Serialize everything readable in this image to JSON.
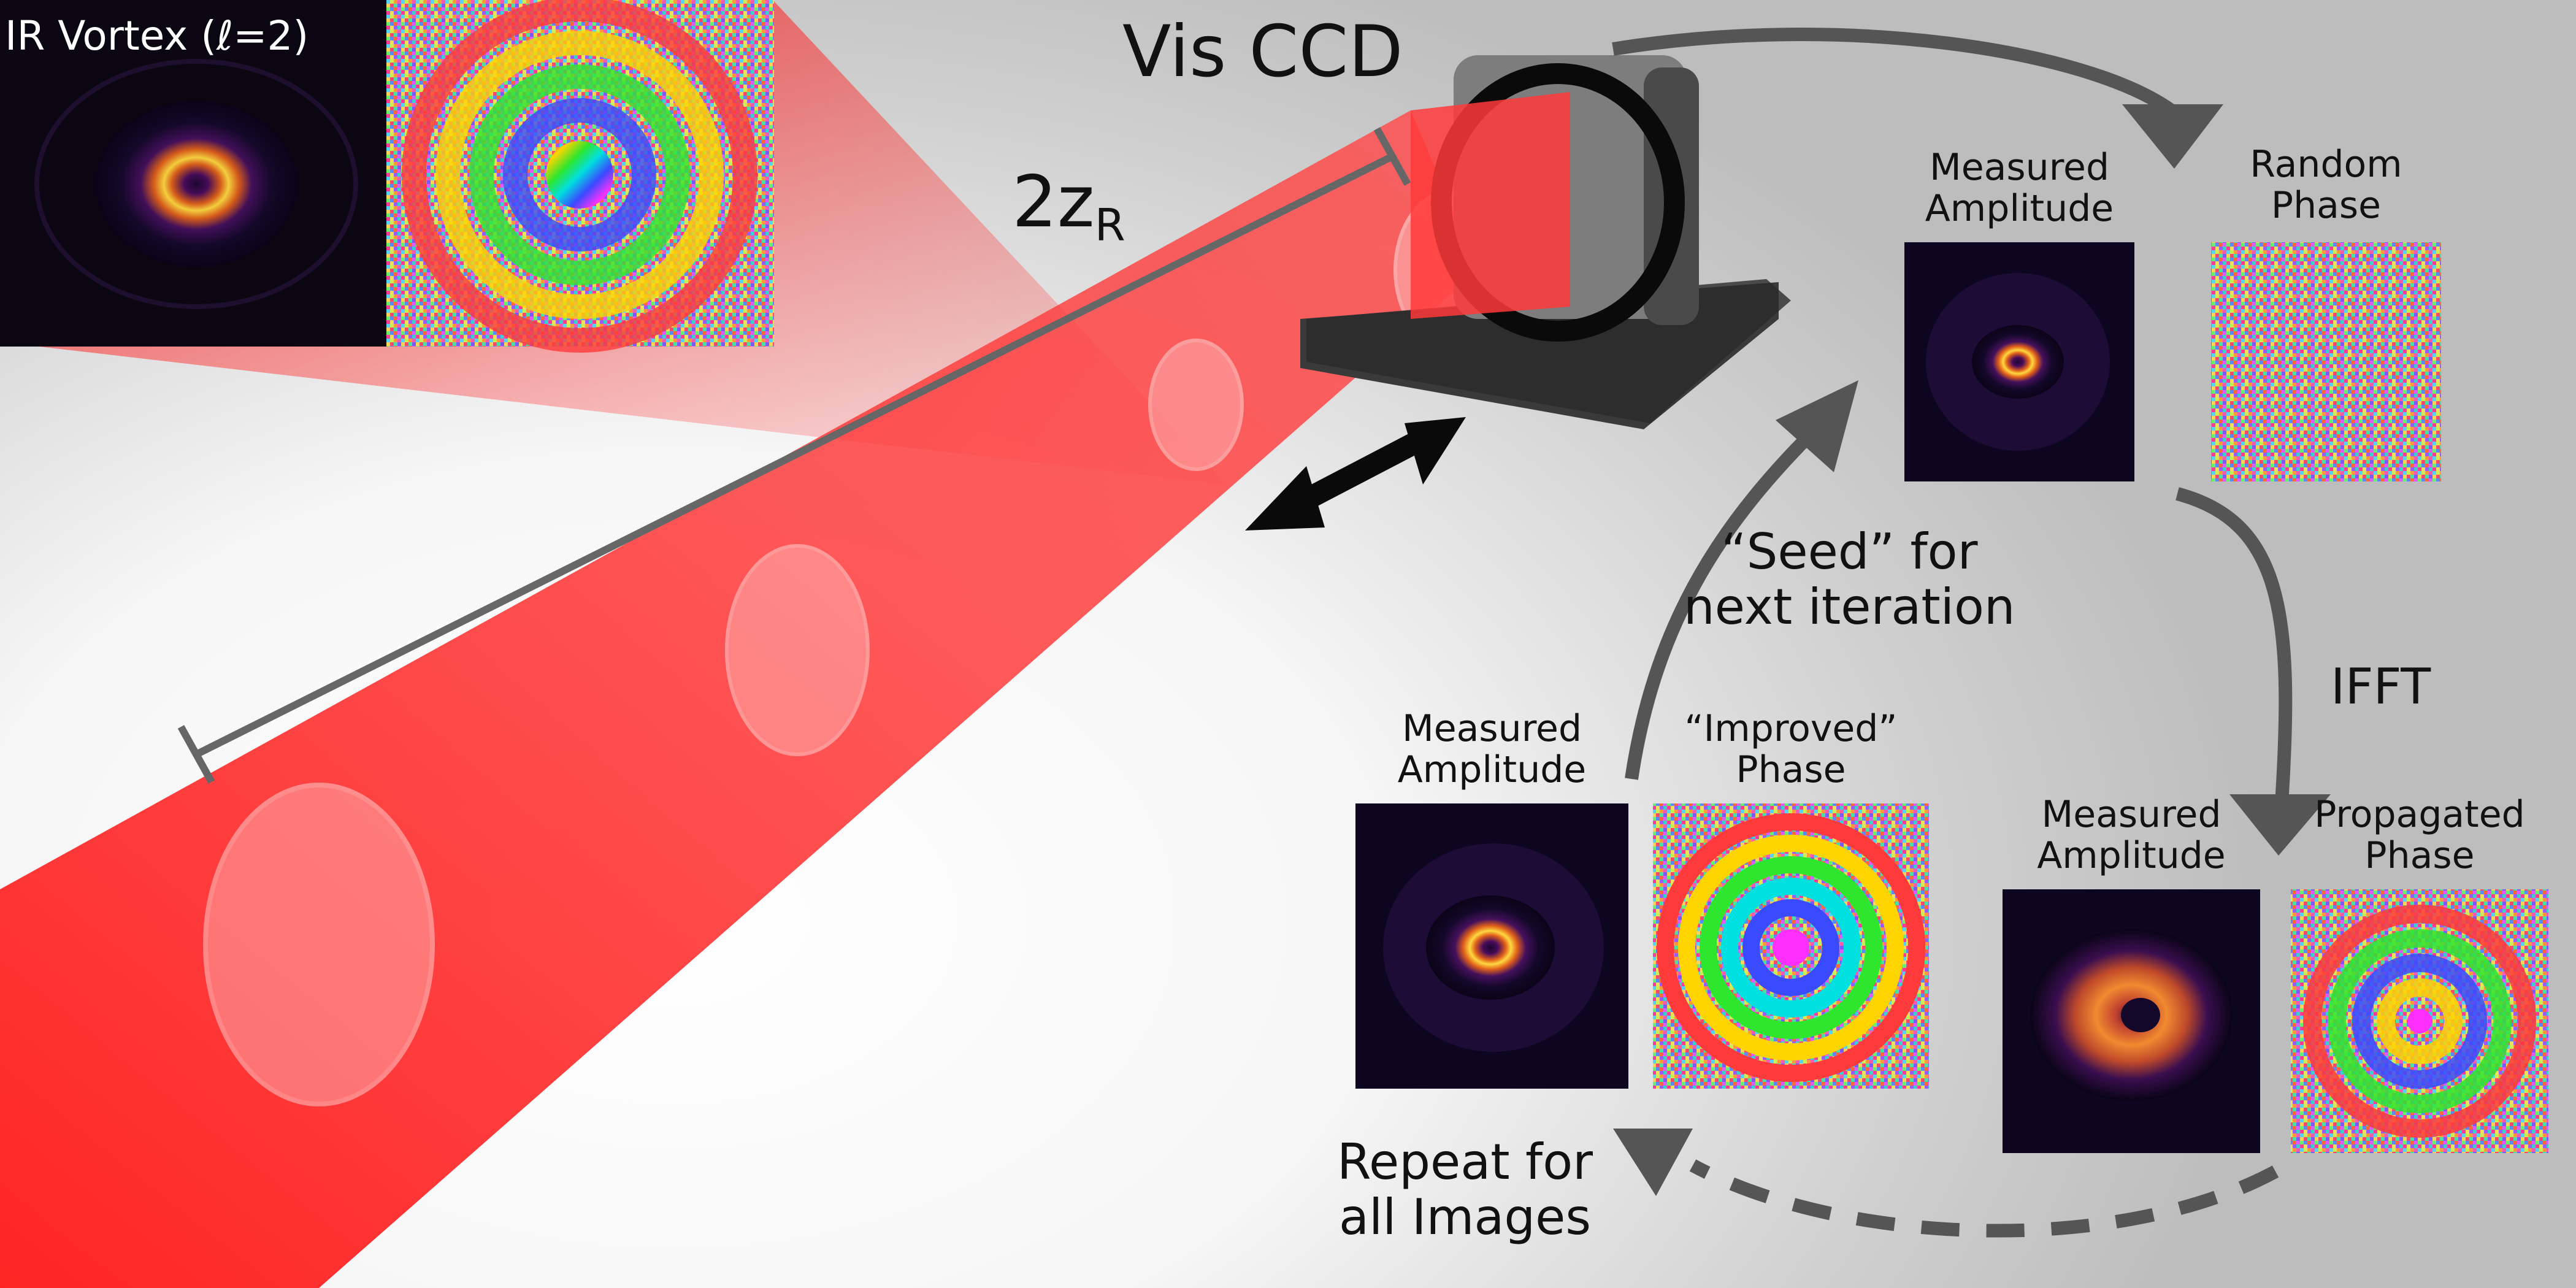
{
  "labels": {
    "ir_vortex": "IR Vortex (ℓ=2)",
    "vis_ccd": "Vis CCD",
    "rayleigh_main": "2z",
    "rayleigh_sub": "R",
    "seed_line1": "“Seed” for",
    "seed_line2": "next iteration",
    "ifft": "IFFT",
    "repeat_line1": "Repeat for",
    "repeat_line2": "all Images"
  },
  "panels": {
    "top_amp": {
      "line1": "Measured",
      "line2": "Amplitude"
    },
    "top_phase": {
      "line1": "Random",
      "line2": "Phase"
    },
    "left_amp": {
      "line1": "Measured",
      "line2": "Amplitude"
    },
    "left_phase": {
      "line1": "“Improved”",
      "line2": "Phase"
    },
    "right_amp": {
      "line1": "Measured",
      "line2": "Amplitude"
    },
    "right_phase": {
      "line1": "Propagated",
      "line2": "Phase"
    }
  },
  "colors": {
    "beam": "#ff2a2a",
    "arrow": "#555555",
    "amplitude_dark": "#0c0620",
    "amplitude_ring": "#f7a019"
  }
}
